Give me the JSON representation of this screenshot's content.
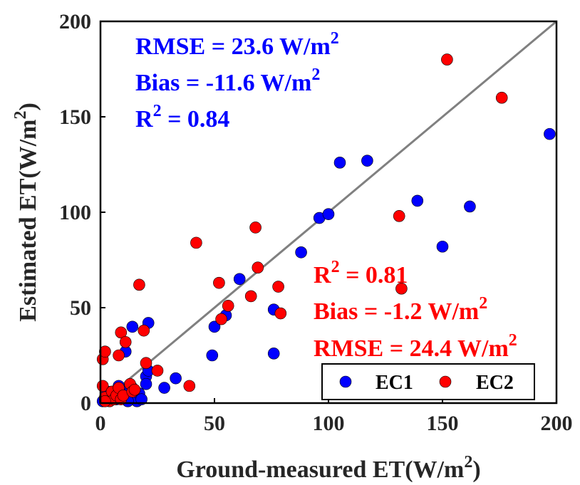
{
  "chart_data": {
    "type": "scatter",
    "xlabel": "Ground-measured ET(W/m",
    "xlabel_sup": "2",
    "xlabel_end": ")",
    "ylabel": "Estimated ET(W/m",
    "ylabel_sup": "2",
    "ylabel_end": ")",
    "xlim": [
      0,
      200
    ],
    "ylim": [
      0,
      200
    ],
    "xticks": [
      "0",
      "50",
      "100",
      "150",
      "200"
    ],
    "yticks": [
      "0",
      "50",
      "100",
      "150",
      "200"
    ],
    "grid": false,
    "legend_position": "bottom-right",
    "one_to_one_line": {
      "color": "#808080"
    },
    "series": [
      {
        "name": "EC1",
        "color": "#0000ff",
        "stats": [
          {
            "main": "RMSE = 23.6 W/m",
            "sup": "2"
          },
          {
            "main": "Bias = -11.6 W/m",
            "sup": "2"
          },
          {
            "pre": "R",
            "sup": "2",
            "main": " = 0.84"
          }
        ],
        "points": [
          [
            1,
            1
          ],
          [
            2,
            2
          ],
          [
            3,
            3
          ],
          [
            4,
            2
          ],
          [
            5,
            5
          ],
          [
            6,
            4
          ],
          [
            7,
            2
          ],
          [
            8,
            6
          ],
          [
            9,
            3
          ],
          [
            10,
            7
          ],
          [
            11,
            2
          ],
          [
            12,
            4
          ],
          [
            13,
            6
          ],
          [
            14,
            8
          ],
          [
            15,
            3
          ],
          [
            16,
            1
          ],
          [
            17,
            5
          ],
          [
            18,
            2
          ],
          [
            3,
            6
          ],
          [
            8,
            9
          ],
          [
            12,
            1
          ],
          [
            11,
            27
          ],
          [
            14,
            40
          ],
          [
            21,
            42
          ],
          [
            20,
            14
          ],
          [
            21,
            17
          ],
          [
            20,
            10
          ],
          [
            28,
            8
          ],
          [
            33,
            13
          ],
          [
            49,
            25
          ],
          [
            50,
            40
          ],
          [
            55,
            46
          ],
          [
            61,
            65
          ],
          [
            76,
            49
          ],
          [
            76,
            26
          ],
          [
            88,
            79
          ],
          [
            96,
            97
          ],
          [
            100,
            99
          ],
          [
            105,
            126
          ],
          [
            117,
            127
          ],
          [
            139,
            106
          ],
          [
            150,
            82
          ],
          [
            162,
            103
          ],
          [
            197,
            141
          ]
        ]
      },
      {
        "name": "EC2",
        "color": "#ff0000",
        "stats": [
          {
            "pre": "R",
            "sup": "2",
            "main": " = 0.81"
          },
          {
            "main": "Bias = -1.2 W/m",
            "sup": "2"
          },
          {
            "main": "RMSE = 24.4 W/m",
            "sup": "2"
          }
        ],
        "points": [
          [
            1,
            23
          ],
          [
            2,
            27
          ],
          [
            1,
            9
          ],
          [
            2,
            3
          ],
          [
            4,
            1
          ],
          [
            5,
            6
          ],
          [
            6,
            2
          ],
          [
            7,
            4
          ],
          [
            8,
            8
          ],
          [
            9,
            2
          ],
          [
            10,
            4
          ],
          [
            13,
            10
          ],
          [
            14,
            6
          ],
          [
            15,
            7
          ],
          [
            2,
            1
          ],
          [
            8,
            25
          ],
          [
            9,
            37
          ],
          [
            11,
            32
          ],
          [
            17,
            62
          ],
          [
            19,
            38
          ],
          [
            20,
            21
          ],
          [
            25,
            17
          ],
          [
            39,
            9
          ],
          [
            42,
            84
          ],
          [
            52,
            63
          ],
          [
            53,
            44
          ],
          [
            56,
            51
          ],
          [
            66,
            56
          ],
          [
            68,
            92
          ],
          [
            69,
            71
          ],
          [
            78,
            61
          ],
          [
            79,
            47
          ],
          [
            131,
            98
          ],
          [
            132,
            60
          ],
          [
            152,
            180
          ],
          [
            176,
            160
          ]
        ]
      }
    ]
  }
}
